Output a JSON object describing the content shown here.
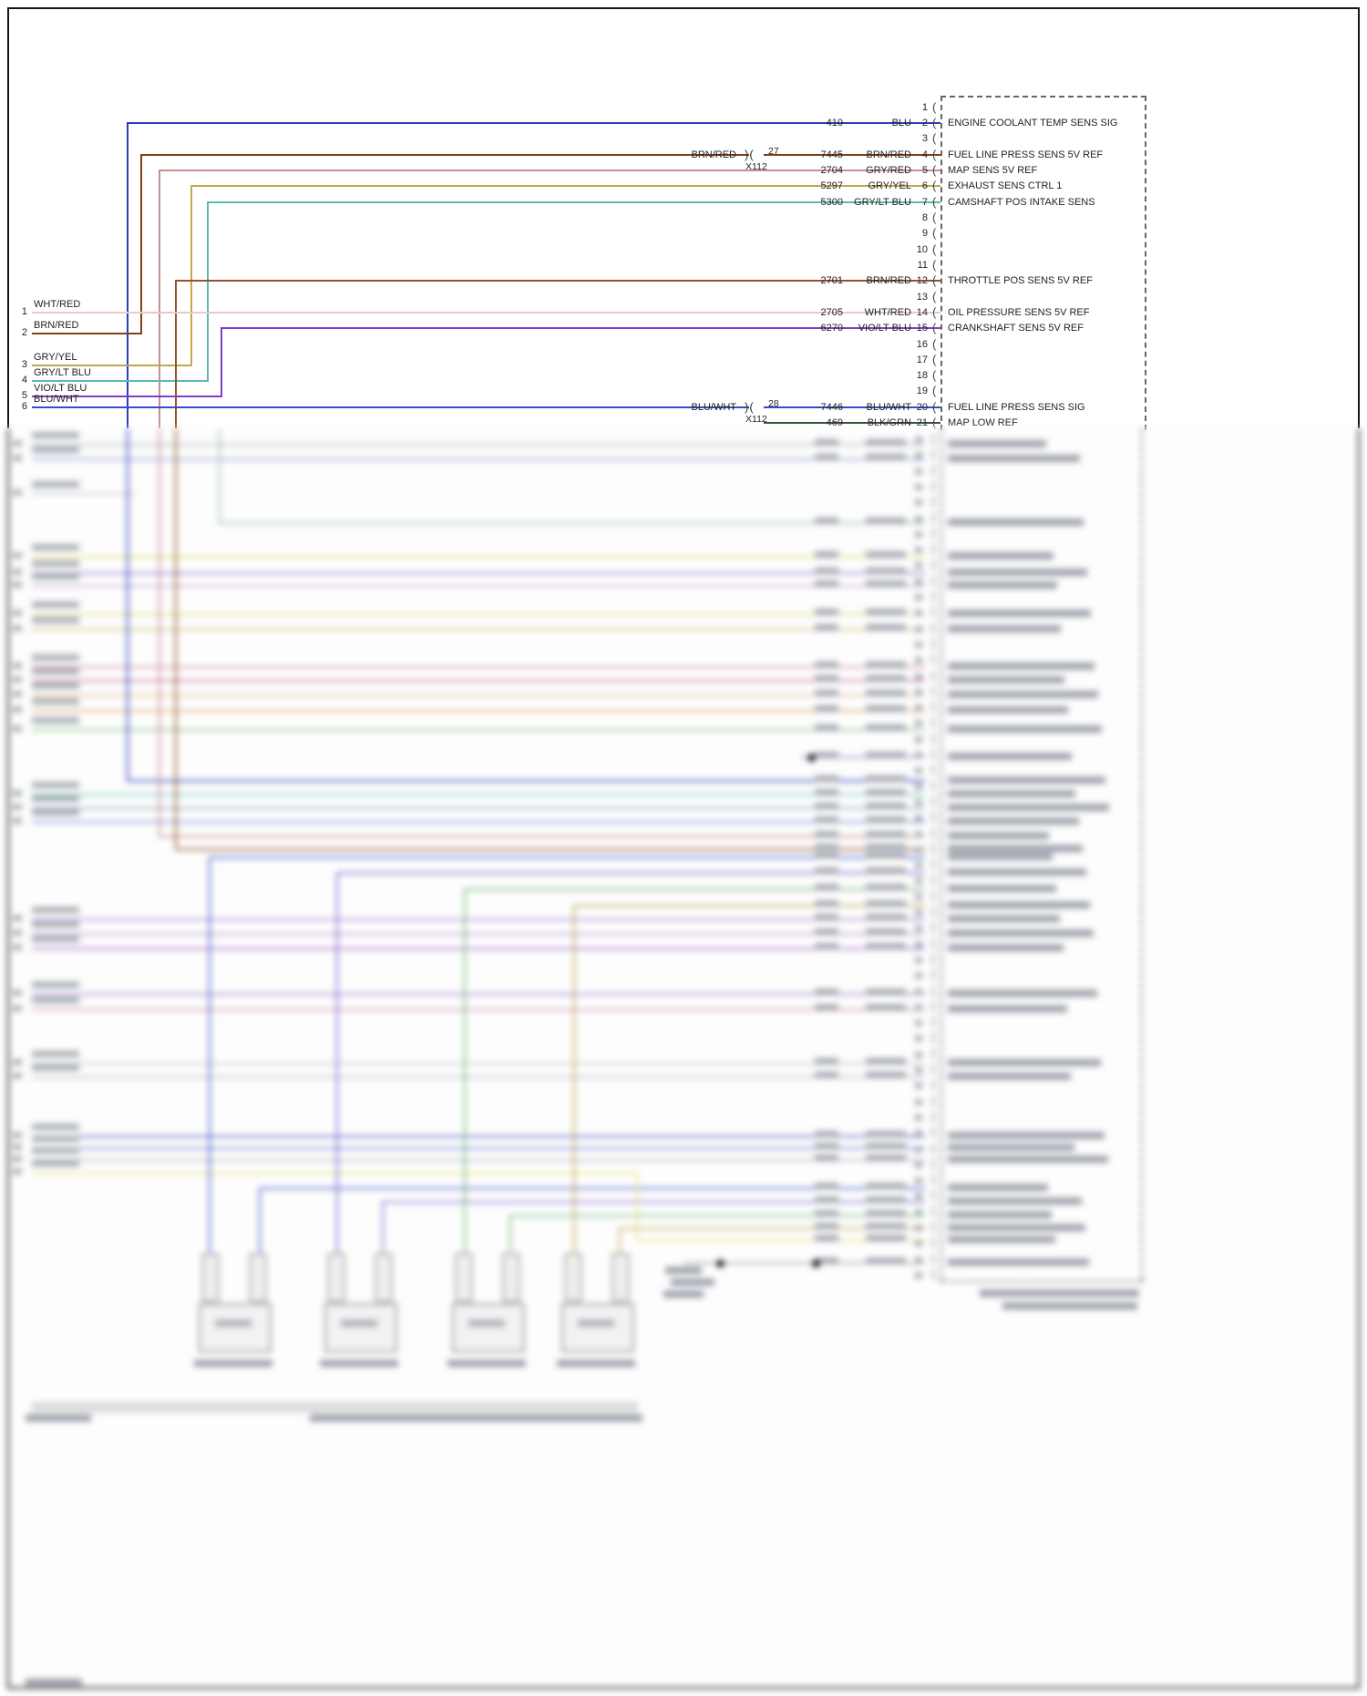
{
  "colors": {
    "blu": "#2e3db8",
    "brn_red": "#80401a",
    "brn_red2": "#96502a",
    "gry_red": "#c78f8f",
    "gry_yel": "#c0a94e",
    "gry_lt_blu": "#5cb8b4",
    "wht_red": "#e7caca",
    "vio_lt_blu": "#7e3fc4",
    "blu_wht": "#3a49c8",
    "blk_grn": "#31502f"
  },
  "connector": {
    "pins": [
      {
        "n": "1"
      },
      {
        "n": "2",
        "circuit": "410",
        "color": "BLU",
        "label": "ENGINE COOLANT TEMP SENS SIG"
      },
      {
        "n": "3"
      },
      {
        "n": "4",
        "circuit": "7445",
        "color": "BRN/RED",
        "label": "FUEL LINE PRESS SENS 5V REF",
        "pre": "BRN/RED"
      },
      {
        "n": "5",
        "circuit": "2704",
        "color": "GRY/RED",
        "label": "MAP SENS 5V REF"
      },
      {
        "n": "6",
        "circuit": "5297",
        "color": "GRY/YEL",
        "label": "EXHAUST SENS CTRL 1"
      },
      {
        "n": "7",
        "circuit": "5300",
        "color": "GRY/LT BLU",
        "label": "CAMSHAFT POS INTAKE SENS"
      },
      {
        "n": "8"
      },
      {
        "n": "9"
      },
      {
        "n": "10"
      },
      {
        "n": "11"
      },
      {
        "n": "12",
        "circuit": "2701",
        "color": "BRN/RED",
        "label": "THROTTLE POS SENS 5V REF"
      },
      {
        "n": "13"
      },
      {
        "n": "14",
        "circuit": "2705",
        "color": "WHT/RED",
        "label": "OIL PRESSURE SENS 5V REF"
      },
      {
        "n": "15",
        "circuit": "6270",
        "color": "VIO/LT BLU",
        "label": "CRANKSHAFT SENS 5V REF"
      },
      {
        "n": "16"
      },
      {
        "n": "17"
      },
      {
        "n": "18"
      },
      {
        "n": "19"
      },
      {
        "n": "20",
        "circuit": "7446",
        "color": "BLU/WHT",
        "label": "FUEL LINE PRESS SENS SIG",
        "pre": "BLU/WHT"
      },
      {
        "n": "21",
        "circuit": "469",
        "color": "BLK/GRN",
        "label": "MAP LOW REF"
      }
    ]
  },
  "left_stubs": [
    {
      "n": "1",
      "label": "WHT/RED"
    },
    {
      "n": "2",
      "label": "BRN/RED"
    },
    {
      "n": "3",
      "label": "GRY/YEL"
    },
    {
      "n": "4",
      "label": "GRY/LT BLU"
    },
    {
      "n": "5",
      "label": "VIO/LT BLU"
    },
    {
      "n": "6",
      "label": "BLU/WHT"
    }
  ],
  "splices": [
    {
      "pin": "27",
      "name": "X112"
    },
    {
      "pin": "28",
      "name": "X112"
    }
  ]
}
